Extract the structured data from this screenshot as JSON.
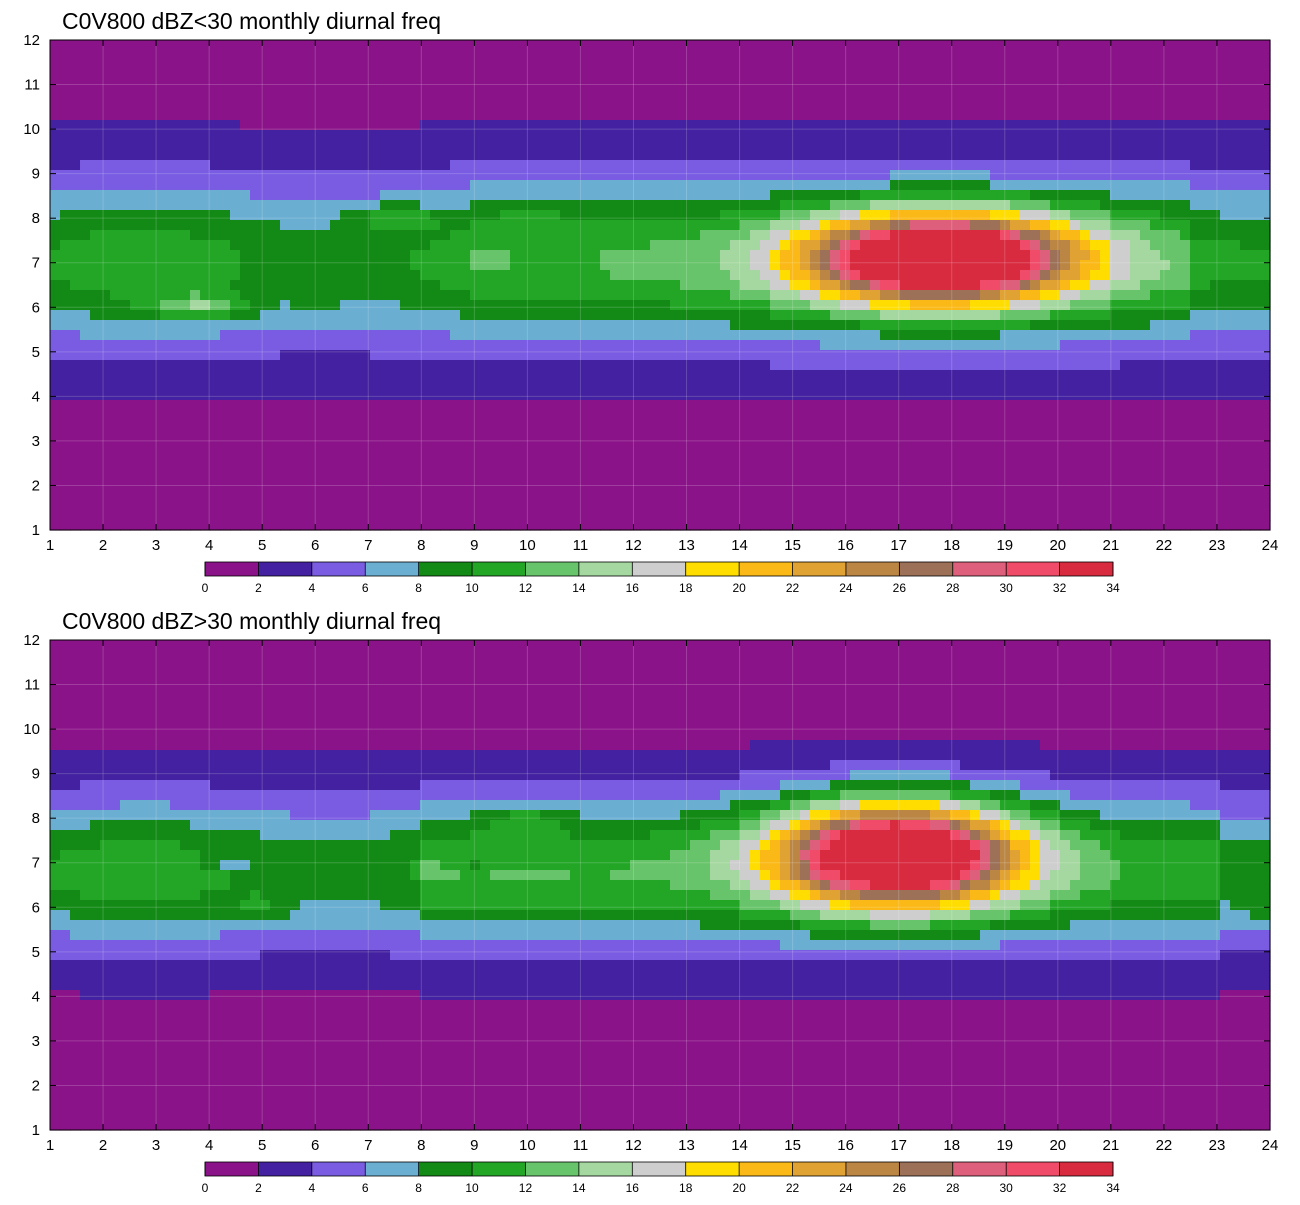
{
  "chart_data": [
    {
      "type": "filled-contour",
      "title": "C0V800 dBZ<30 monthly diurnal freq",
      "xlim": [
        1,
        24
      ],
      "ylim": [
        1,
        12
      ],
      "x_ticks": [
        "1",
        "2",
        "3",
        "4",
        "5",
        "6",
        "7",
        "8",
        "9",
        "10",
        "11",
        "12",
        "13",
        "14",
        "15",
        "16",
        "17",
        "18",
        "19",
        "20",
        "21",
        "22",
        "23",
        "24"
      ],
      "y_ticks": [
        "1",
        "2",
        "3",
        "4",
        "5",
        "6",
        "7",
        "8",
        "9",
        "10",
        "11",
        "12"
      ],
      "grid": true,
      "contour_line_color": "#e8a94a",
      "colorbar": {
        "levels": [
          0,
          2,
          4,
          6,
          8,
          10,
          12,
          14,
          16,
          18,
          20,
          22,
          24,
          26,
          28,
          30,
          32,
          34
        ],
        "tick_labels": [
          "0",
          "2",
          "4",
          "6",
          "8",
          "10",
          "12",
          "14",
          "16",
          "18",
          "20",
          "22",
          "24",
          "26",
          "28",
          "30",
          "32",
          "34"
        ],
        "colors": [
          "#8b1389",
          "#4421a0",
          "#7a5ce3",
          "#6aaed2",
          "#138a15",
          "#23a526",
          "#68c46a",
          "#a5d8a0",
          "#cecece",
          "#ffdd00",
          "#fbb918",
          "#e0a232",
          "#bb8643",
          "#9c7158",
          "#de5f7b",
          "#f04c6a",
          "#d92b40"
        ]
      },
      "field": {
        "peak": {
          "x": 17.8,
          "y": 7.1,
          "value": 32.5,
          "sx": 2.5,
          "sy": 1.0
        },
        "band": {
          "y": 7.0,
          "width": 1.8,
          "base": 7,
          "amplitude": 3,
          "start_x": 9,
          "end_x": 22.5,
          "end_value": 7
        },
        "bumps": [
          {
            "x": 4.0,
            "y": 6.0,
            "value": 4,
            "sx": 0.8,
            "sy": 0.3
          },
          {
            "x": 7.5,
            "y": 8.0,
            "value": 4,
            "sx": 0.8,
            "sy": 0.3
          },
          {
            "x": 10.0,
            "y": 8.0,
            "value": 2,
            "sx": 0.6,
            "sy": 0.3
          },
          {
            "x": 10.5,
            "y": 7.0,
            "value": -2,
            "sx": 0.6,
            "sy": 0.2
          },
          {
            "x": 3.5,
            "y": 6.0,
            "value": 2,
            "sx": 0.9,
            "sy": 0.3
          },
          {
            "x": 6.0,
            "y": 6.0,
            "value": 1.5,
            "sx": 0.4,
            "sy": 0.3
          }
        ]
      }
    },
    {
      "type": "filled-contour",
      "title": "C0V800 dBZ>30 monthly diurnal freq",
      "xlim": [
        1,
        24
      ],
      "ylim": [
        1,
        12
      ],
      "x_ticks": [
        "1",
        "2",
        "3",
        "4",
        "5",
        "6",
        "7",
        "8",
        "9",
        "10",
        "11",
        "12",
        "13",
        "14",
        "15",
        "16",
        "17",
        "18",
        "19",
        "20",
        "21",
        "22",
        "23",
        "24"
      ],
      "y_ticks": [
        "1",
        "2",
        "3",
        "4",
        "5",
        "6",
        "7",
        "8",
        "9",
        "10",
        "11",
        "12"
      ],
      "grid": true,
      "contour_line_color": "#e8a94a",
      "colorbar": {
        "levels": [
          0,
          2,
          4,
          6,
          8,
          10,
          12,
          14,
          16,
          18,
          20,
          22,
          24,
          26,
          28,
          30,
          32,
          34
        ],
        "tick_labels": [
          "0",
          "2",
          "4",
          "6",
          "8",
          "10",
          "12",
          "14",
          "16",
          "18",
          "20",
          "22",
          "24",
          "26",
          "28",
          "30",
          "32",
          "34"
        ],
        "colors": [
          "#8b1389",
          "#4421a0",
          "#7a5ce3",
          "#6aaed2",
          "#138a15",
          "#23a526",
          "#68c46a",
          "#a5d8a0",
          "#cecece",
          "#ffdd00",
          "#fbb918",
          "#e0a232",
          "#bb8643",
          "#9c7158",
          "#de5f7b",
          "#f04c6a",
          "#d92b40"
        ]
      },
      "field": {
        "peak": {
          "x": 17.0,
          "y": 7.2,
          "value": 32.5,
          "sx": 2.2,
          "sy": 1.15
        },
        "band": {
          "y": 6.8,
          "width": 1.6,
          "base": 7,
          "amplitude": 3,
          "start_x": 8,
          "end_x": 23,
          "end_value": 6
        },
        "bumps": [
          {
            "x": 10.0,
            "y": 8.0,
            "value": 3,
            "sx": 0.8,
            "sy": 0.3
          },
          {
            "x": 5.0,
            "y": 6.0,
            "value": 2.5,
            "sx": 0.5,
            "sy": 0.3
          },
          {
            "x": 9.0,
            "y": 7.0,
            "value": -3,
            "sx": 0.3,
            "sy": 0.2
          },
          {
            "x": 4.5,
            "y": 7.0,
            "value": -3,
            "sx": 0.5,
            "sy": 0.2
          },
          {
            "x": 24.0,
            "y": 6.0,
            "value": 2,
            "sx": 0.5,
            "sy": 0.4
          }
        ]
      }
    }
  ]
}
